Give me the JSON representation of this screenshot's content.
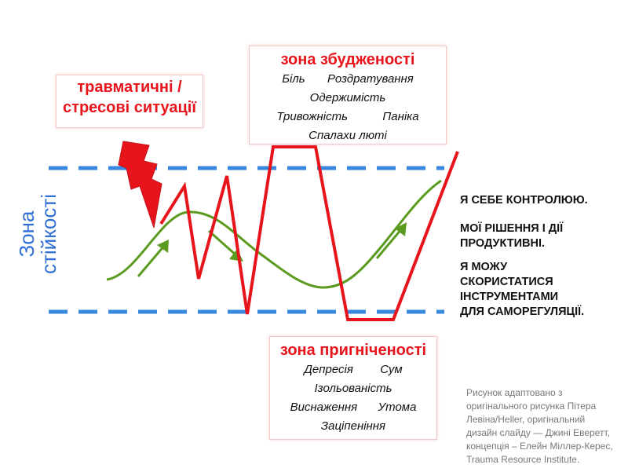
{
  "trauma_box": {
    "title_line1": "травматичні /",
    "title_line2": "стресові ситуації"
  },
  "hyperarousal": {
    "title": "зона збудженості",
    "items": [
      "Біль",
      "Роздратування",
      "Одержимість",
      "Тривожність",
      "Паніка",
      "Спалахи люті"
    ]
  },
  "hypoarousal": {
    "title": "зона пригніченості",
    "items": [
      "Депресія",
      "Сум",
      "Ізольованість",
      "Виснаження",
      "Утома",
      "Заціпеніння"
    ]
  },
  "resilience_zone": {
    "label_line1": "Зона",
    "label_line2": "стійкості"
  },
  "statements": {
    "s1": "Я СЕБЕ КОНТРОЛЮЮ.",
    "s2_line1": "МОЇ РІШЕННЯ І ДІЇ",
    "s2_line2": "ПРОДУКТИВНІ.",
    "s3_line1": "Я МОЖУ",
    "s3_line2": "СКОРИСТАТИСЯ",
    "s3_line3": "ІНСТРУМЕНТАМИ",
    "s3_line4": "ДЛЯ САМОРЕГУЛЯЦІЇ."
  },
  "caption": {
    "line1": "Рисунок адаптовано з",
    "line2": "оригінального рисунка Пітера",
    "line3": "Левіна/Heller, оригінальний",
    "line4": "дизайн слайду — Джині Еверетт,",
    "line5": "концепція – Елейн Міллер-Керес,",
    "line6": "Trauma Resource Institute."
  },
  "colors": {
    "red": "#e8141c",
    "blue_dashed": "#3a87e0",
    "green": "#5a9a1e",
    "label_blue": "#2f6fd6"
  },
  "icons": {
    "stress_bolt": "lightning-bolt-icon"
  }
}
